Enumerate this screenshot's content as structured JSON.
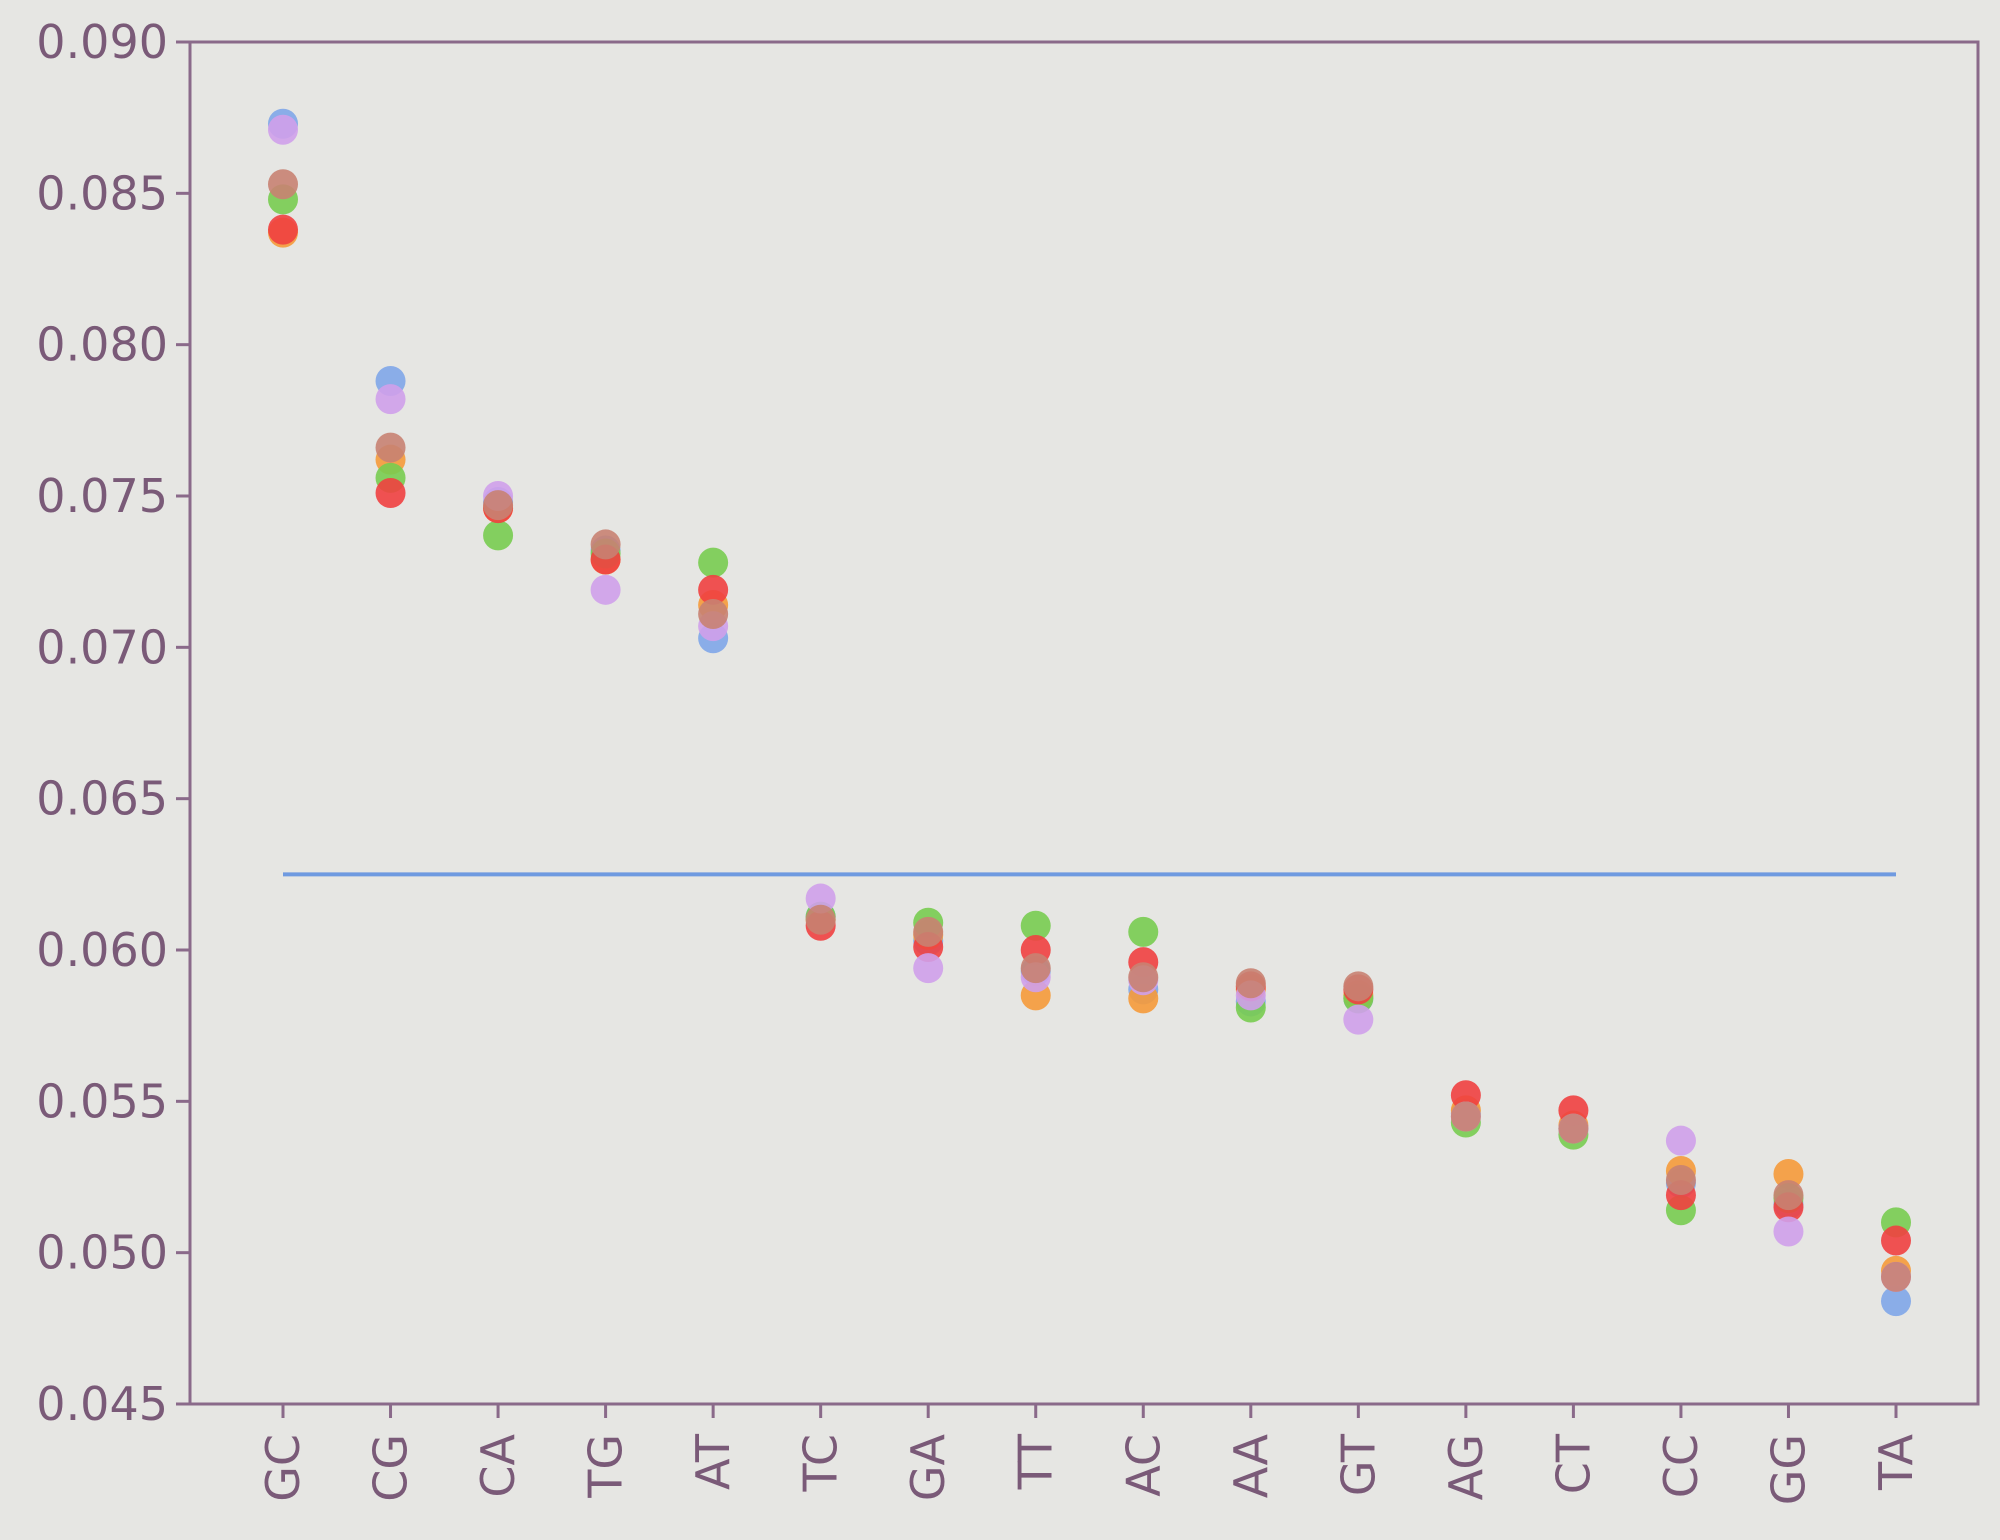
{
  "chart_data": {
    "type": "scatter",
    "title": "",
    "xlabel": "",
    "ylabel": "",
    "categories": [
      "GC",
      "CG",
      "CA",
      "TG",
      "AT",
      "TC",
      "GA",
      "TT",
      "AC",
      "AA",
      "GT",
      "AG",
      "CT",
      "CC",
      "GG",
      "TA"
    ],
    "ylim": [
      0.045,
      0.09
    ],
    "yticks": [
      0.045,
      0.05,
      0.055,
      0.06,
      0.065,
      0.07,
      0.075,
      0.08,
      0.085,
      0.09
    ],
    "ytick_labels": [
      "0.045",
      "0.050",
      "0.055",
      "0.060",
      "0.065",
      "0.070",
      "0.075",
      "0.080",
      "0.085",
      "0.090"
    ],
    "grid": false,
    "legend": "none",
    "reference_line": {
      "y": 0.0625,
      "color": "#6f9ae0"
    },
    "series": [
      {
        "color": "#7fa6e8",
        "values": [
          0.0873,
          0.0788,
          0.0748,
          0.0732,
          0.0703,
          0.0611,
          0.0603,
          0.0593,
          0.0587,
          0.0583,
          0.0584,
          0.0546,
          0.0541,
          0.0523,
          0.0516,
          0.0484
        ]
      },
      {
        "color": "#f59a3a",
        "values": [
          0.0837,
          0.0762,
          0.0746,
          0.0729,
          0.0714,
          0.061,
          0.0605,
          0.0585,
          0.0584,
          0.0587,
          0.0585,
          0.0547,
          0.0542,
          0.0527,
          0.0526,
          0.0494
        ]
      },
      {
        "color": "#78cc50",
        "values": [
          0.0848,
          0.0756,
          0.0737,
          0.0731,
          0.0728,
          0.0611,
          0.0609,
          0.0608,
          0.0606,
          0.0581,
          0.0584,
          0.0543,
          0.0539,
          0.0514,
          0.0518,
          0.051
        ]
      },
      {
        "color": "#f04040",
        "values": [
          0.0838,
          0.0751,
          0.0746,
          0.0729,
          0.0719,
          0.0608,
          0.0601,
          0.06,
          0.0596,
          0.0588,
          0.0587,
          0.0552,
          0.0547,
          0.0519,
          0.0515,
          0.0504
        ]
      },
      {
        "color": "#cfa0ea",
        "values": [
          0.0871,
          0.0782,
          0.075,
          0.0719,
          0.0707,
          0.0617,
          0.0594,
          0.0591,
          0.059,
          0.0585,
          0.0577,
          0.0545,
          0.0541,
          0.0537,
          0.0507,
          0.0492
        ]
      },
      {
        "color": "#c88272",
        "values": [
          0.0853,
          0.0766,
          0.0747,
          0.0734,
          0.0711,
          0.061,
          0.0606,
          0.0594,
          0.0591,
          0.0589,
          0.0588,
          0.0545,
          0.0541,
          0.0524,
          0.0519,
          0.0492
        ]
      }
    ]
  }
}
